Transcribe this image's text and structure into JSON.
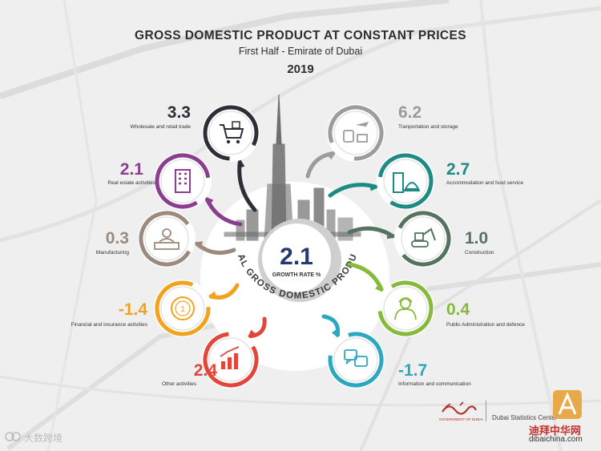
{
  "header": {
    "title": "GROSS DOMESTIC PRODUCT AT CONSTANT PRICES",
    "subtitle": "First Half - Emirate of Dubai",
    "year": "2019"
  },
  "center": {
    "value": "2.1",
    "caption": "GROWTH RATE %",
    "arc_text": "REAL GROSS DOMESTIC PRODUCT"
  },
  "chart_data": {
    "type": "infographic",
    "title": "GROSS DOMESTIC PRODUCT AT CONSTANT PRICES",
    "subtitle": "First Half - Emirate of Dubai",
    "overall_growth_rate": 2.1,
    "sectors": [
      {
        "name": "Wholesale and retail trade",
        "value": 3.3,
        "icon": "shopping-cart-icon",
        "color": "#2e2e38"
      },
      {
        "name": "Real estate activities",
        "value": 2.1,
        "icon": "building-icon",
        "color": "#8b3d8f"
      },
      {
        "name": "Manufacturing",
        "value": 0.3,
        "icon": "factory-worker-icon",
        "color": "#9b8a7d"
      },
      {
        "name": "Financial and insurance activities",
        "value": -1.4,
        "icon": "coin-icon",
        "color": "#f2a21c"
      },
      {
        "name": "Other activities",
        "value": 2.4,
        "icon": "bar-chart-icon",
        "color": "#e1463a"
      },
      {
        "name": "Tranportation and storage",
        "value": 6.2,
        "icon": "transport-icon",
        "color": "#9c9c9c"
      },
      {
        "name": "Accommodation and food service",
        "value": 2.7,
        "icon": "hotel-icon",
        "color": "#1d8a83"
      },
      {
        "name": "Construction",
        "value": 1.0,
        "icon": "excavator-icon",
        "color": "#55735f"
      },
      {
        "name": "Public Administration and defence",
        "value": 0.4,
        "icon": "official-icon",
        "color": "#86ba3b"
      },
      {
        "name": "Information and communication",
        "value": -1.7,
        "icon": "chat-icon",
        "color": "#2aa8c0"
      }
    ]
  },
  "footer": {
    "dsc_label": "Dubai Statistics Center",
    "gov_label": "GOVERNMENT OF DUBAI",
    "brand_cn": "迪拜中华网",
    "website": "dibaichina.com",
    "watermark": "大数跨境"
  }
}
